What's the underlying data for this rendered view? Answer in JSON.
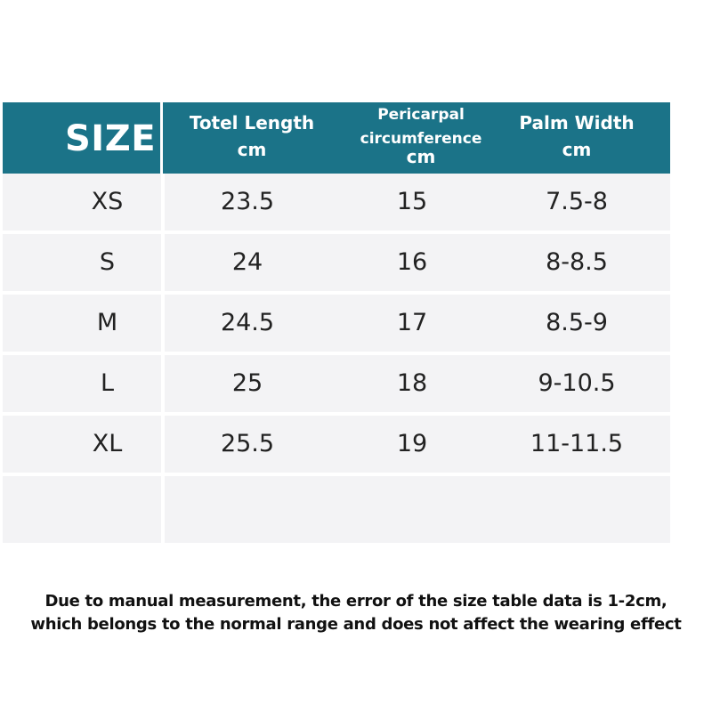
{
  "table": {
    "header": {
      "size": "SIZE",
      "total_length": {
        "title": "Totel Length",
        "unit": "cm"
      },
      "pericarpal": {
        "title_line1": "Pericarpal",
        "title_line2": "circumference",
        "unit": "cm"
      },
      "palm_width": {
        "title": "Palm Width",
        "unit": "cm"
      }
    },
    "rows": [
      {
        "size": "XS",
        "length": "23.5",
        "pericarpal": "15",
        "palm": "7.5-8"
      },
      {
        "size": "S",
        "length": "24",
        "pericarpal": "16",
        "palm": "8-8.5"
      },
      {
        "size": "M",
        "length": "24.5",
        "pericarpal": "17",
        "palm": "8.5-9"
      },
      {
        "size": "L",
        "length": "25",
        "pericarpal": "18",
        "palm": "9-10.5"
      },
      {
        "size": "XL",
        "length": "25.5",
        "pericarpal": "19",
        "palm": "11-11.5"
      }
    ],
    "header_color": "#1b7388",
    "row_color": "#f3f3f5"
  },
  "note": {
    "line1": "Due to manual measurement, the error of the size table data is 1-2cm,",
    "line2": "which belongs to the normal range and does not affect the wearing effect"
  }
}
